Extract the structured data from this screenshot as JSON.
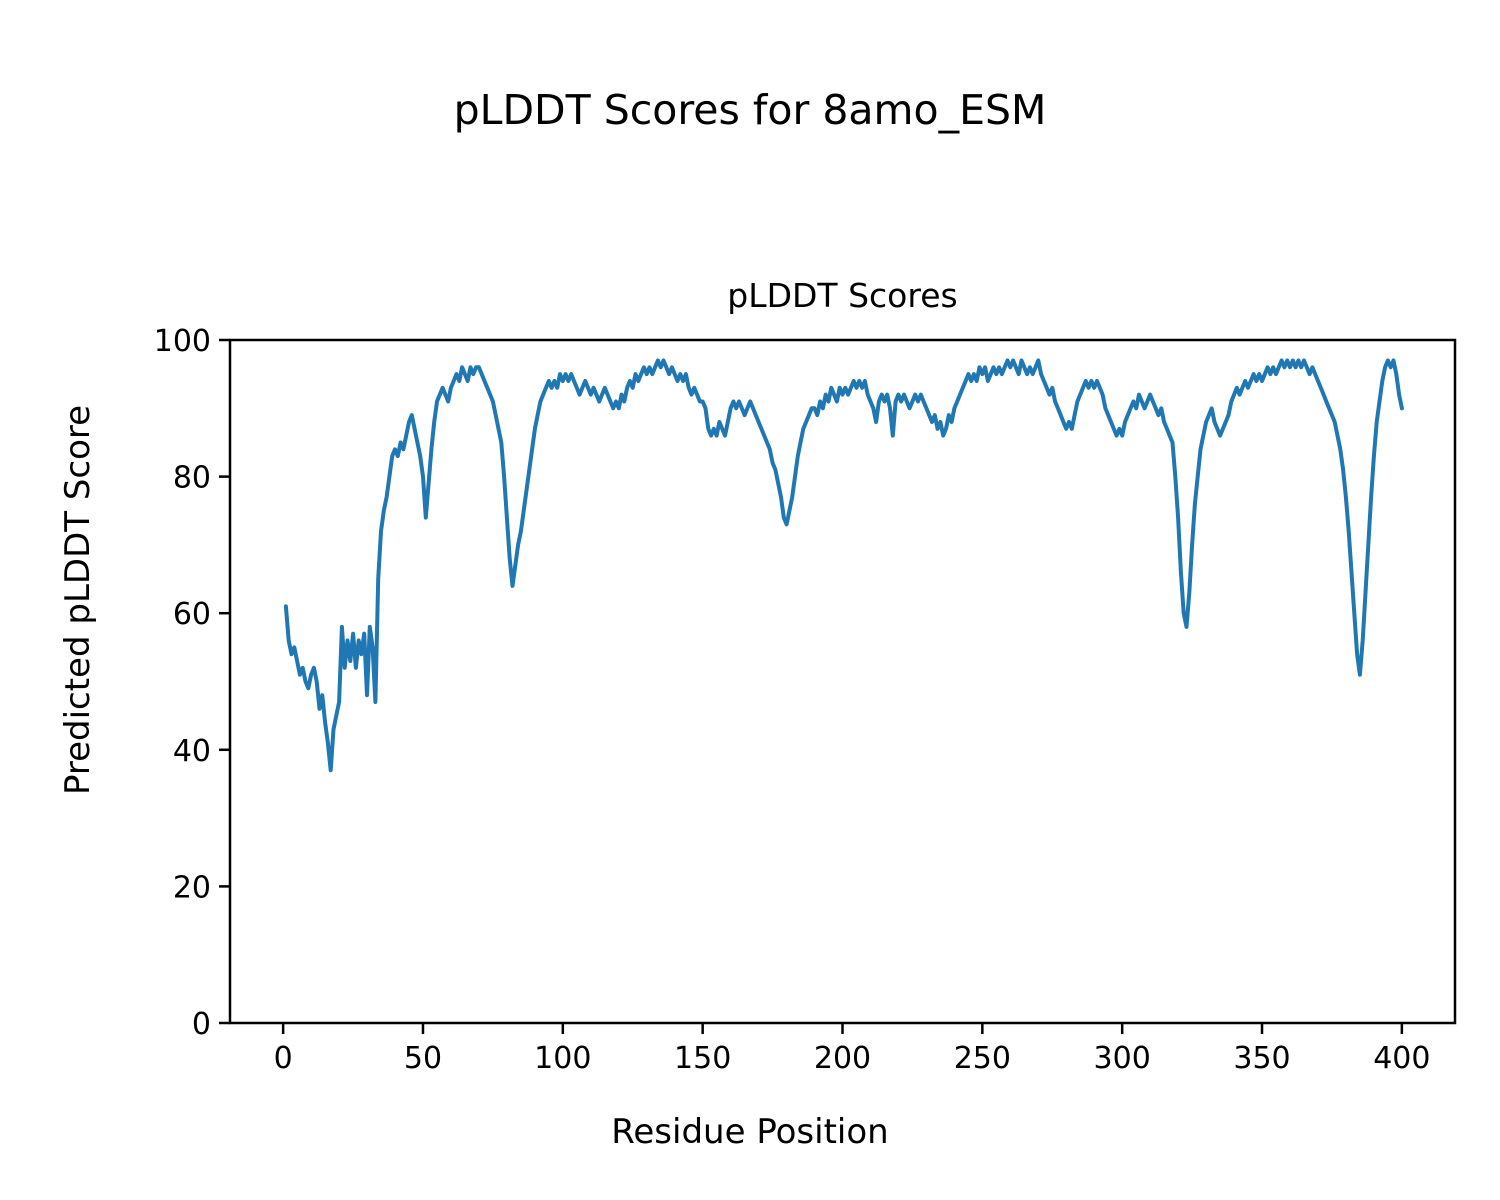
{
  "chart_data": {
    "type": "line",
    "suptitle": "pLDDT Scores for 8amo_ESM",
    "title": "pLDDT Scores",
    "xlabel": "Residue Position",
    "ylabel": "Predicted pLDDT Score",
    "xlim": [
      -19,
      419
    ],
    "ylim": [
      0,
      100
    ],
    "xticks": [
      0,
      50,
      100,
      150,
      200,
      250,
      300,
      350,
      400
    ],
    "yticks": [
      0,
      20,
      40,
      60,
      80,
      100
    ],
    "grid": false,
    "legend": null,
    "line_color": "#1f77b4",
    "axes_color": "#000000",
    "series": [
      {
        "name": "pLDDT",
        "x_start": 1,
        "x_step": 1,
        "y": [
          61,
          56,
          54,
          55,
          53,
          51,
          52,
          50,
          49,
          51,
          52,
          50,
          46,
          48,
          44,
          41,
          37,
          43,
          45,
          47,
          58,
          52,
          56,
          53,
          57,
          52,
          56,
          54,
          57,
          48,
          58,
          55,
          47,
          65,
          72,
          75,
          77,
          80,
          83,
          84,
          83,
          85,
          84,
          86,
          88,
          89,
          87,
          85,
          83,
          80,
          74,
          79,
          84,
          88,
          91,
          92,
          93,
          92,
          91,
          93,
          94,
          95,
          94,
          96,
          95,
          94,
          96,
          95,
          96,
          96,
          95,
          94,
          93,
          92,
          91,
          89,
          87,
          85,
          80,
          74,
          68,
          64,
          67,
          70,
          72,
          75,
          78,
          81,
          84,
          87,
          89,
          91,
          92,
          93,
          94,
          93,
          94,
          93,
          95,
          94,
          95,
          94,
          95,
          94,
          93,
          92,
          93,
          94,
          93,
          92,
          93,
          92,
          91,
          92,
          93,
          92,
          91,
          90,
          91,
          90,
          92,
          91,
          93,
          94,
          93,
          95,
          94,
          95,
          96,
          95,
          96,
          95,
          96,
          97,
          96,
          97,
          96,
          95,
          96,
          95,
          94,
          95,
          94,
          95,
          93,
          92,
          93,
          92,
          91,
          91,
          90,
          87,
          86,
          87,
          86,
          88,
          87,
          86,
          88,
          90,
          91,
          90,
          91,
          90,
          89,
          90,
          91,
          90,
          89,
          88,
          87,
          86,
          85,
          84,
          82,
          81,
          79,
          77,
          74,
          73,
          75,
          77,
          80,
          83,
          85,
          87,
          88,
          89,
          90,
          90,
          89,
          91,
          90,
          92,
          91,
          93,
          92,
          91,
          93,
          92,
          93,
          92,
          93,
          94,
          93,
          94,
          93,
          94,
          92,
          91,
          90,
          88,
          91,
          92,
          91,
          92,
          90,
          86,
          91,
          92,
          91,
          92,
          91,
          90,
          91,
          92,
          91,
          92,
          91,
          90,
          89,
          88,
          89,
          87,
          88,
          86,
          87,
          89,
          88,
          90,
          91,
          92,
          93,
          94,
          95,
          94,
          95,
          94,
          96,
          95,
          96,
          94,
          95,
          96,
          95,
          96,
          95,
          96,
          97,
          96,
          97,
          96,
          95,
          97,
          96,
          95,
          96,
          95,
          96,
          97,
          95,
          94,
          93,
          92,
          93,
          91,
          90,
          89,
          88,
          87,
          88,
          87,
          89,
          91,
          92,
          93,
          94,
          93,
          94,
          93,
          94,
          93,
          92,
          90,
          89,
          88,
          87,
          86,
          87,
          86,
          88,
          89,
          90,
          91,
          90,
          92,
          91,
          90,
          91,
          92,
          91,
          90,
          89,
          90,
          88,
          87,
          86,
          85,
          80,
          74,
          66,
          60,
          58,
          63,
          70,
          76,
          80,
          84,
          86,
          88,
          89,
          90,
          88,
          87,
          86,
          87,
          88,
          89,
          91,
          92,
          93,
          92,
          93,
          94,
          93,
          94,
          95,
          94,
          95,
          94,
          95,
          96,
          95,
          96,
          95,
          96,
          97,
          96,
          97,
          96,
          97,
          96,
          97,
          96,
          97,
          96,
          95,
          96,
          95,
          94,
          93,
          92,
          91,
          90,
          89,
          88,
          86,
          84,
          81,
          77,
          72,
          66,
          60,
          54,
          51,
          56,
          63,
          70,
          77,
          83,
          88,
          91,
          94,
          96,
          97,
          96,
          97,
          95,
          92,
          90
        ]
      }
    ]
  }
}
